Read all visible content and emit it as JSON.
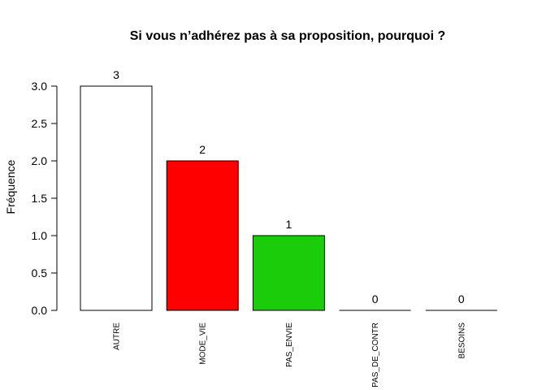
{
  "chart_data": {
    "type": "bar",
    "title": "Si vous n’adhérez pas à sa proposition, pourquoi ?",
    "xlabel": "",
    "ylabel": "Fréquence",
    "categories": [
      "AUTRE",
      "MODE_VIE",
      "PAS_ENVIE",
      "PAS_DE_CONTR",
      "BESOINS"
    ],
    "values": [
      3,
      2,
      1,
      0,
      0
    ],
    "data_labels": [
      "3",
      "2",
      "1",
      "0",
      "0"
    ],
    "colors": [
      "#ffffff",
      "#ff0000",
      "#1bcc0a",
      "#ffffff",
      "#ffffff"
    ],
    "ylim": [
      0,
      3
    ],
    "yticks": [
      "0.0",
      "0.5",
      "1.0",
      "1.5",
      "2.0",
      "2.5",
      "3.0"
    ],
    "grid": false,
    "legend": "none"
  }
}
